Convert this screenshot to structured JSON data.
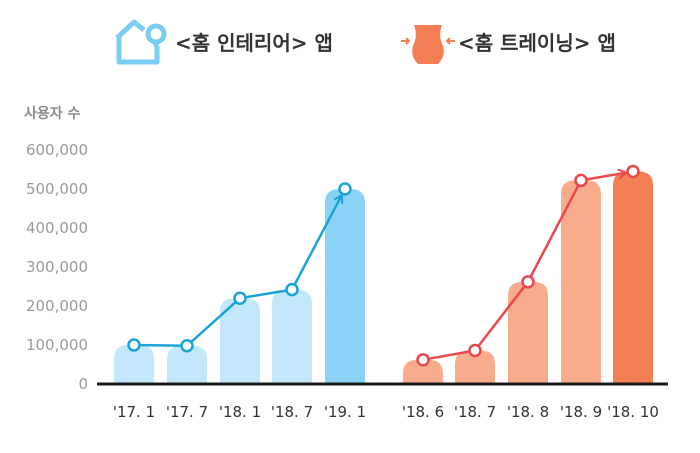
{
  "chart_data": {
    "type": "bar",
    "ylabel": "사용자 수",
    "ylim": [
      0,
      600000
    ],
    "yticks": [
      "0",
      "100,000",
      "200,000",
      "300,000",
      "400,000",
      "500,000",
      "600,000"
    ],
    "grid": false,
    "legend_placement": "top",
    "groups": [
      {
        "name": "<홈 인테리어> 앱",
        "icon": "house-pin-icon",
        "bar_color": "#c4e8fb",
        "highlight_color": "#8ad3f7",
        "line_color": "#1aa3d9",
        "categories": [
          "'17. 1",
          "'17. 7",
          "'18. 1",
          "'18. 7",
          "'19. 1"
        ],
        "values": [
          100000,
          98000,
          220000,
          242000,
          500000
        ]
      },
      {
        "name": "<홈 트레이닝> 앱",
        "icon": "body-waist-icon",
        "bar_color": "#f9ac8c",
        "highlight_color": "#f57f55",
        "line_color": "#e8484e",
        "categories": [
          "'18. 6",
          "'18. 7",
          "'18. 8",
          "'18. 9",
          "'18. 10"
        ],
        "values": [
          62000,
          86000,
          262000,
          522000,
          545000
        ]
      }
    ]
  }
}
